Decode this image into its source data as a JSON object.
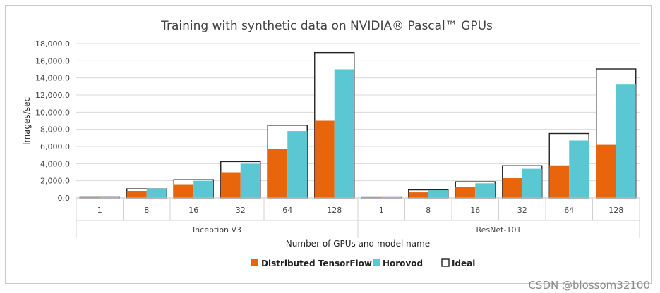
{
  "chart_data": {
    "type": "bar",
    "title": "Training with synthetic data on NVIDIA® Pascal™ GPUs",
    "ylabel": "Images/sec",
    "xlabel": "Number of GPUs and model name",
    "ylim": [
      0,
      18000
    ],
    "y_ticks": [
      "0.0",
      "2,000.0",
      "4,000.0",
      "6,000.0",
      "8,000.0",
      "10,000.0",
      "12,000.0",
      "14,000.0",
      "16,000.0",
      "18,000.0"
    ],
    "y_tick_values": [
      0,
      2000,
      4000,
      6000,
      8000,
      10000,
      12000,
      14000,
      16000,
      18000
    ],
    "legend_position": "bottom",
    "groups": [
      {
        "model": "Inception V3",
        "categories": [
          "1",
          "8",
          "16",
          "32",
          "64",
          "128"
        ],
        "series": [
          {
            "name": "Distributed TensorFlow",
            "color": "#e8650c",
            "values": [
              130,
              820,
              1600,
              3000,
              5700,
              9000
            ]
          },
          {
            "name": "Horovod",
            "color": "#5ac7d3",
            "values": [
              130,
              1100,
              2000,
              4000,
              7800,
              15000
            ]
          },
          {
            "name": "Ideal",
            "color": "#ffffff",
            "outline": "#222222",
            "values": [
              130,
              1060,
              2120,
              4240,
              8480,
              16960
            ]
          }
        ]
      },
      {
        "model": "ResNet-101",
        "categories": [
          "1",
          "8",
          "16",
          "32",
          "64",
          "128"
        ],
        "series": [
          {
            "name": "Distributed TensorFlow",
            "color": "#e8650c",
            "values": [
              100,
              650,
              1250,
              2300,
              3800,
              6200
            ]
          },
          {
            "name": "Horovod",
            "color": "#5ac7d3",
            "values": [
              100,
              900,
              1700,
              3400,
              6700,
              13300
            ]
          },
          {
            "name": "Ideal",
            "color": "#ffffff",
            "outline": "#222222",
            "values": [
              118,
              940,
              1880,
              3760,
              7520,
              15040
            ]
          }
        ]
      }
    ],
    "legend": [
      {
        "name": "Distributed TensorFlow",
        "color": "#e8650c"
      },
      {
        "name": "Horovod",
        "color": "#5ac7d3"
      },
      {
        "name": "Ideal",
        "color": "#ffffff",
        "outline": "#222222"
      }
    ]
  },
  "watermark": "CSDN @blossom32100"
}
